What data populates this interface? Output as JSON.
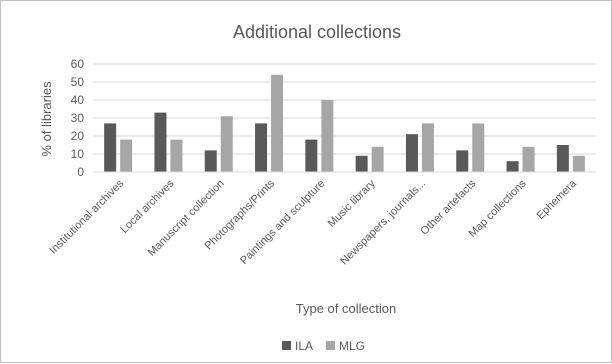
{
  "chart_data": {
    "type": "bar",
    "title": "Additional collections",
    "xlabel": "Type of collection",
    "ylabel": "% of libraries",
    "ylim": [
      0,
      60
    ],
    "yticks": [
      0,
      10,
      20,
      30,
      40,
      50,
      60
    ],
    "grid": true,
    "legend_position": "bottom",
    "categories": [
      "Institutional archives",
      "Local archives",
      "Manuscript collection",
      "Photographs/Prints",
      "Paintings and sculpture",
      "Music library",
      "Newspapers, journals...",
      "Other artefacts",
      "Map collections",
      "Ephemera"
    ],
    "series": [
      {
        "name": "ILA",
        "color": "#595959",
        "values": [
          27,
          33,
          12,
          27,
          18,
          9,
          21,
          12,
          6,
          15
        ]
      },
      {
        "name": "MLG",
        "color": "#a6a6a6",
        "values": [
          18,
          18,
          31,
          54,
          40,
          14,
          27,
          27,
          14,
          9
        ]
      }
    ]
  }
}
